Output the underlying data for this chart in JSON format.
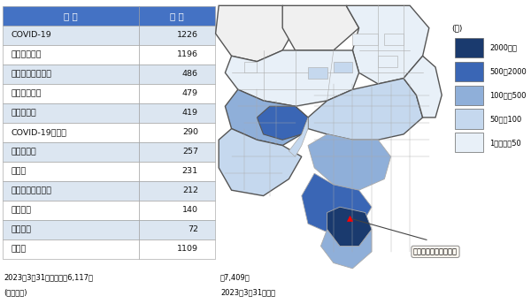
{
  "table_header": [
    "病 名",
    "人 数"
  ],
  "table_rows": [
    [
      "COVID-19",
      "1226"
    ],
    [
      "急性上気道炎",
      "1196"
    ],
    [
      "アレルギー性鼻炎",
      "486"
    ],
    [
      "急性気管支炎",
      "479"
    ],
    [
      "気管支喃息",
      "419"
    ],
    [
      "COVID-19の疊い",
      "290"
    ],
    [
      "急性扁桃炎",
      "257"
    ],
    [
      "胸脳炎",
      "231"
    ],
    [
      "アトピー性皮膚炎",
      "212"
    ],
    [
      "気分障害",
      "140"
    ],
    [
      "精神障害",
      "72"
    ],
    [
      "その他",
      "1109"
    ]
  ],
  "header_bg_color": "#4472C4",
  "header_text_color": "#ffffff",
  "row_odd_color": "#dce6f1",
  "row_even_color": "#ffffff",
  "legend_label": "(人)",
  "legend_items": [
    {
      "label": "2000以上",
      "color": "#1a3a6e"
    },
    {
      "label": "500～2000",
      "color": "#3a66b5"
    },
    {
      "label": "100～　500",
      "color": "#8fafd9"
    },
    {
      "label": "50～　100",
      "color": "#c5d8ee"
    },
    {
      "label": "1～　　㔀50",
      "color": "#e8f0f8"
    }
  ],
  "clinic_label": "外房こどもクリニック",
  "footer_left_text": "2023年3月31日現在　計6,117件",
  "footer_left_text2": "(重複あり)",
  "footer_right_text": "計7,409名",
  "footer_right_text2": "2023年3月31日現在"
}
